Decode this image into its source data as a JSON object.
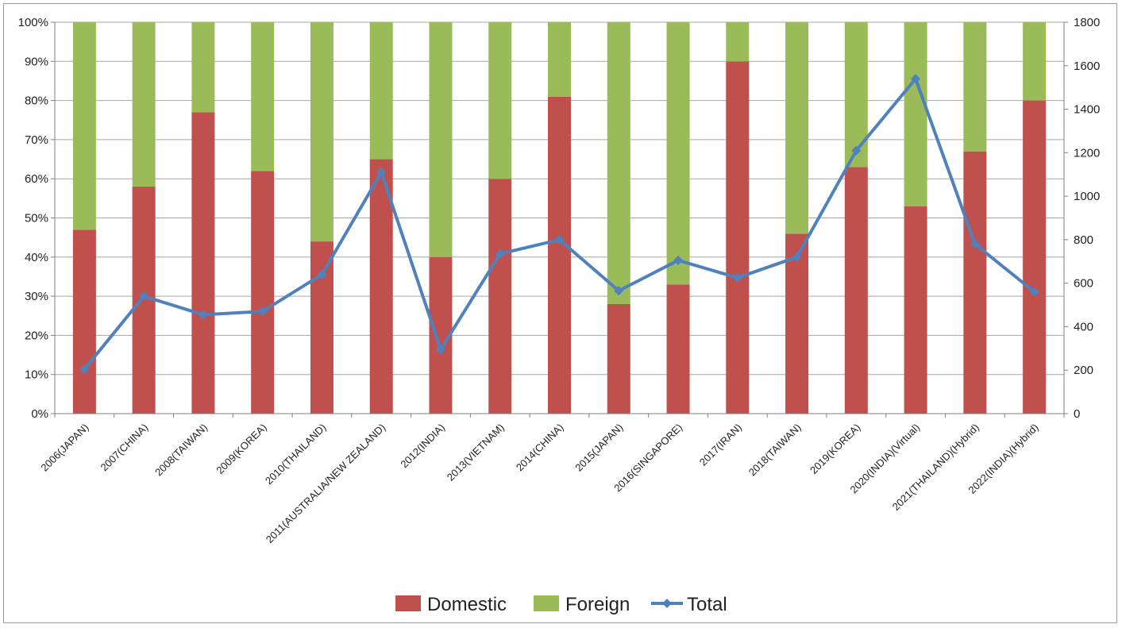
{
  "chart_data": {
    "type": "bar",
    "stacked": true,
    "percent_stacked": true,
    "categories": [
      "2006(JAPAN)",
      "2007(CHINA)",
      "2008(TAIWAN)",
      "2009(KOREA)",
      "2010(THAILAND)",
      "2011(AUSTRALIA/NEW ZEALAND)",
      "2012(INDIA)",
      "2013(VIETNAM)",
      "2014(CHINA)",
      "2015(JAPAN)",
      "2016(SINGAPORE)",
      "2017(IRAN)",
      "2018(TAIWAN)",
      "2019(KOREA)",
      "2020(INDIA)(Virtual)",
      "2021(THAILAND)(Hybrid)",
      "2022(INDIA)(Hybrid)"
    ],
    "series": [
      {
        "name": "Domestic",
        "type": "bar",
        "axis": "left",
        "color": "#c0504d",
        "values": [
          47,
          58,
          77,
          62,
          44,
          65,
          40,
          60,
          81,
          28,
          33,
          90,
          46,
          63,
          53,
          67,
          80
        ]
      },
      {
        "name": "Foreign",
        "type": "bar",
        "axis": "left",
        "color": "#9bbb59",
        "values": [
          53,
          42,
          23,
          38,
          56,
          35,
          60,
          40,
          19,
          72,
          67,
          10,
          54,
          37,
          47,
          33,
          20
        ]
      },
      {
        "name": "Total",
        "type": "line",
        "axis": "right",
        "color": "#4f81bd",
        "marker": "diamond",
        "values": [
          205,
          540,
          455,
          470,
          640,
          1110,
          295,
          735,
          800,
          565,
          705,
          625,
          720,
          1210,
          1540,
          780,
          560
        ]
      }
    ],
    "y_left": {
      "ylim": [
        0,
        100
      ],
      "ticks": [
        "0%",
        "10%",
        "20%",
        "30%",
        "40%",
        "50%",
        "60%",
        "70%",
        "80%",
        "90%",
        "100%"
      ]
    },
    "y_right": {
      "ylim": [
        0,
        1800
      ],
      "ticks": [
        "0",
        "200",
        "400",
        "600",
        "800",
        "1000",
        "1200",
        "1400",
        "1600",
        "1800"
      ]
    },
    "title": "",
    "xlabel": "",
    "ylabel": "",
    "grid": true,
    "legend": {
      "position": "bottom",
      "entries": [
        "Domestic",
        "Foreign",
        "Total"
      ]
    }
  }
}
